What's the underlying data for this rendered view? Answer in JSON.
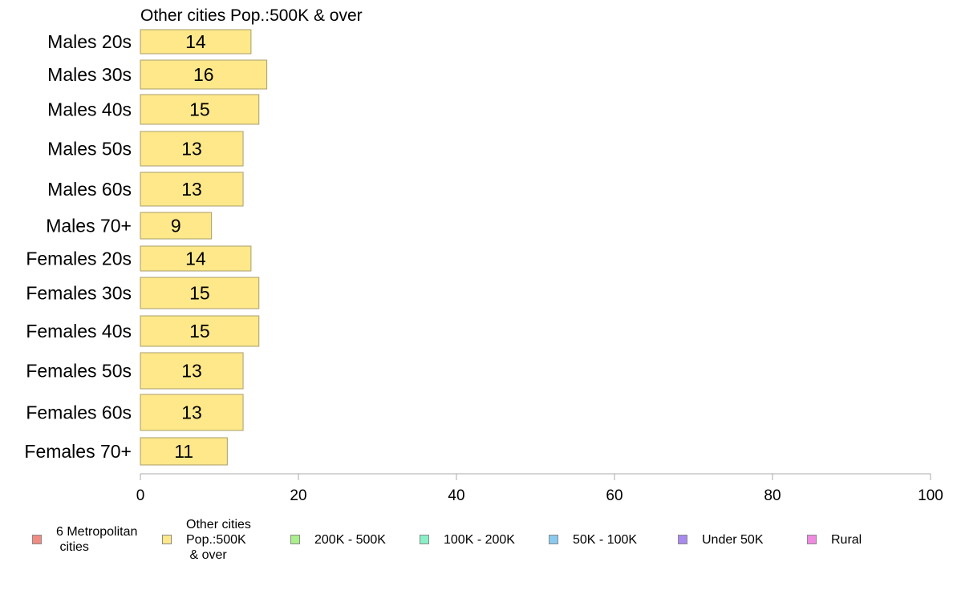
{
  "chart_data": {
    "type": "bar",
    "orientation": "horizontal",
    "title": "Other cities Pop.:500K & over",
    "categories": [
      "Males 20s",
      "Males 30s",
      "Males 40s",
      "Males 50s",
      "Males 60s",
      "Males 70+",
      "Females 20s",
      "Females 30s",
      "Females 40s",
      "Females 50s",
      "Females 60s",
      "Females 70+"
    ],
    "values": [
      14,
      16,
      15,
      13,
      13,
      9,
      14,
      15,
      15,
      13,
      13,
      11
    ],
    "xlim": [
      0,
      100
    ],
    "xticks": [
      "0",
      "20",
      "40",
      "60",
      "80",
      "100"
    ],
    "bar_color": "#ffe88a",
    "bar_edge_color": "#a89e6a",
    "grid": false,
    "legend_position": "bottom"
  },
  "legend": [
    {
      "label": "6 Metropolitan\n cities",
      "color": "#f28b82"
    },
    {
      "label": "Other cities\nPop.:500K\n & over",
      "color": "#ffe88a"
    },
    {
      "label": "200K - 500K",
      "color": "#a8f08a"
    },
    {
      "label": "100K - 200K",
      "color": "#8af0c8"
    },
    {
      "label": "50K - 100K",
      "color": "#8acaf0"
    },
    {
      "label": "Under 50K",
      "color": "#a88af0"
    },
    {
      "label": "Rural",
      "color": "#f08ae0"
    }
  ]
}
